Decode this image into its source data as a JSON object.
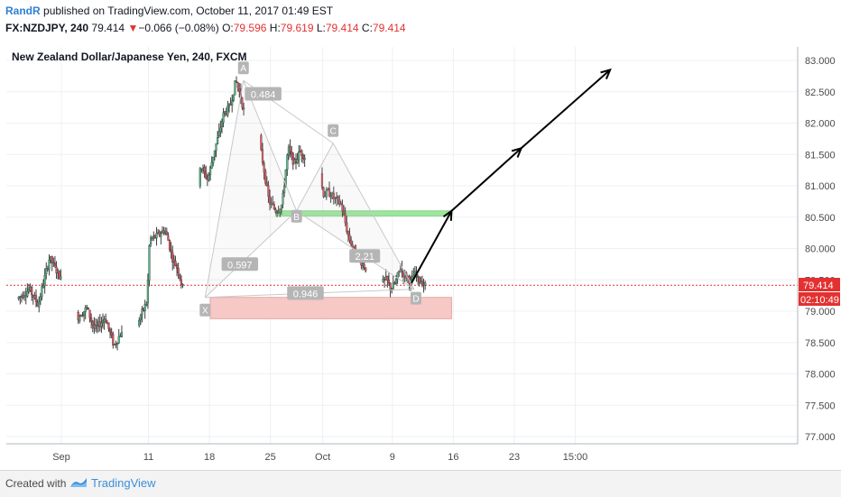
{
  "header": {
    "author": "RandR",
    "published_text": "published on TradingView.com, October 11, 2017 01:49 EST",
    "symbol": "FX:NZDJPY, 240",
    "last": "79.414",
    "change_arrow": "▼",
    "change": "−0.066 (−0.08%)",
    "o_label": "O:",
    "o_value": "79.596",
    "h_label": "H:",
    "h_value": "79.619",
    "l_label": "L:",
    "l_value": "79.414",
    "c_label": "C:",
    "c_value": "79.414"
  },
  "chart": {
    "legend_title": "New Zealand Dollar/Japanese Yen, 240, FXCM",
    "last_price_label": "79.414",
    "countdown_label": "02:10:49",
    "colors": {
      "up": "#53b987",
      "down": "#eb4d5c",
      "wick": "#3d3d3d",
      "pattern": "#c9c9c9",
      "pattern_label": "#b5b5b5",
      "green_zone": "#9ee59e",
      "red_zone": "#f6c8c6",
      "arrow": "#000000",
      "last_price": "#e33131"
    }
  },
  "chart_data": {
    "type": "candlestick",
    "title": "New Zealand Dollar/Japanese Yen, 240, FXCM",
    "ylim": [
      76.85,
      83.3
    ],
    "y_ticks": [
      "77.000",
      "77.500",
      "78.000",
      "78.500",
      "79.000",
      "79.500",
      "80.000",
      "80.500",
      "81.000",
      "81.500",
      "82.000",
      "82.500",
      "83.000"
    ],
    "x_ticks": [
      "Sep",
      "11",
      "18",
      "25",
      "Oct",
      "9",
      "16",
      "23",
      "15:00"
    ],
    "grid": true,
    "x_range_days": [
      -4.9,
      46.4
    ],
    "last_price": 79.414,
    "ohlc_anchor_days": [
      -4.9,
      -3.5,
      -2.5,
      -1.2,
      0.0,
      1.0,
      2.0,
      3.1,
      4.0,
      5.2,
      6.2,
      7.0,
      8.0,
      9.0,
      9.5,
      10.0,
      10.3,
      11.2,
      12.0,
      12.4,
      12.9,
      13.6,
      14.3,
      14.7,
      15.2,
      16.0,
      17.0,
      17.7,
      18.2,
      18.8,
      19.5,
      20.2,
      20.8,
      21.3,
      21.8,
      22.3,
      23.2,
      24.0,
      24.8,
      25.5,
      26.2,
      26.9,
      27.6,
      28.2,
      28.5,
      29.0,
      29.6,
      30.3,
      30.8,
      31.5,
      32.3,
      33.1,
      34.0,
      34.8,
      35.5,
      36.3,
      37.0,
      37.5,
      38.0,
      38.5,
      39.1,
      39.5,
      39.9,
      40.3,
      40.7,
      41.1,
      41.5,
      41.85
    ],
    "ohlc_anchor_prices": [
      79.2,
      79.35,
      79.1,
      79.85,
      79.55,
      79.25,
      78.9,
      79.05,
      78.7,
      78.9,
      78.45,
      78.65,
      78.5,
      78.85,
      79.0,
      79.15,
      80.15,
      80.2,
      80.3,
      80.15,
      79.85,
      79.65,
      79.25,
      79.4,
      80.2,
      81.35,
      81.1,
      81.55,
      81.8,
      82.15,
      82.25,
      82.68,
      82.4,
      82.05,
      81.95,
      82.15,
      81.45,
      80.75,
      80.6,
      80.7,
      81.6,
      81.35,
      81.55,
      81.45,
      81.3,
      81.25,
      81.3,
      80.85,
      80.9,
      80.8,
      80.7,
      80.2,
      79.9,
      79.75,
      79.6,
      79.55,
      79.45,
      79.5,
      79.35,
      79.45,
      79.7,
      79.58,
      79.55,
      79.45,
      79.6,
      79.5,
      79.48,
      79.414
    ],
    "pattern": {
      "name": "Gartley-type (XABCD)",
      "points": [
        {
          "label": "X",
          "day": 16.5,
          "price": 79.22
        },
        {
          "label": "A",
          "day": 20.9,
          "price": 82.68
        },
        {
          "label": "B",
          "day": 27.0,
          "price": 80.6
        },
        {
          "label": "C",
          "day": 31.2,
          "price": 81.68
        },
        {
          "label": "D",
          "day": 40.5,
          "price": 79.35
        }
      ],
      "ratios": [
        {
          "text": "0.484"
        },
        {
          "text": "0.597"
        },
        {
          "text": "2.21"
        },
        {
          "text": "0.946"
        }
      ]
    },
    "zones": [
      {
        "kind": "support",
        "color": "green",
        "price_top": 80.6,
        "price_bottom": 80.52,
        "day_start": 24.6,
        "day_end": 44.8
      },
      {
        "kind": "target-zone",
        "color": "red",
        "price_top": 79.22,
        "price_bottom": 78.88,
        "day_start": 17.1,
        "day_end": 44.8
      }
    ],
    "projection_arrow": [
      {
        "day": 40.2,
        "price": 79.45
      },
      {
        "day": 44.8,
        "price": 80.6
      },
      {
        "day": 52.8,
        "price": 81.6
      },
      {
        "day": 63.0,
        "price": 82.85
      }
    ]
  },
  "footer": {
    "created_with": "Created with",
    "brand": "TradingView"
  }
}
